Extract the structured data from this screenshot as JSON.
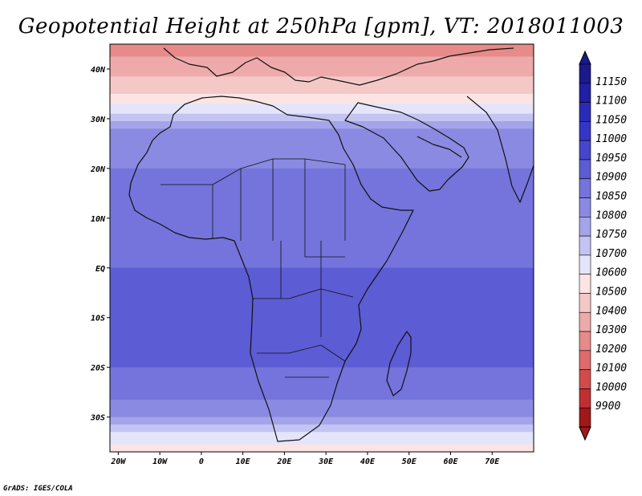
{
  "chart_data": {
    "type": "heatmap",
    "title": "Geopotential Height at 250hPa [gpm], VT: 2018011003",
    "variable": "Geopotential Height",
    "level": "250hPa",
    "units": "gpm",
    "valid_time": "2018011003",
    "x_axis": {
      "range": [
        -22,
        80
      ],
      "ticks": [
        -20,
        -10,
        0,
        10,
        20,
        30,
        40,
        50,
        60,
        70
      ],
      "tick_labels": [
        "20W",
        "10W",
        "0",
        "10E",
        "20E",
        "30E",
        "40E",
        "50E",
        "60E",
        "70E"
      ]
    },
    "y_axis": {
      "range": [
        -37,
        45
      ],
      "ticks": [
        40,
        30,
        20,
        10,
        0,
        -10,
        -20,
        -30
      ],
      "tick_labels": [
        "40N",
        "30N",
        "20N",
        "10N",
        "EQ",
        "10S",
        "20S",
        "30S"
      ]
    },
    "colorbar": {
      "levels": [
        "11150",
        "11100",
        "11050",
        "11000",
        "10950",
        "10900",
        "10850",
        "10800",
        "10750",
        "10700",
        "10600",
        "10500",
        "10400",
        "10300",
        "10200",
        "10100",
        "10000",
        "9900"
      ],
      "colors": [
        "#1a1a8c",
        "#2020a0",
        "#2b2bb8",
        "#3535c8",
        "#4646cc",
        "#5c5cd4",
        "#7474dc",
        "#8a8ae2",
        "#a4a4ea",
        "#c4c4f2",
        "#e4e4fa",
        "#fbe4e4",
        "#f5c8c8",
        "#eeaaaa",
        "#e68a8a",
        "#de6a6a",
        "#d24b4b",
        "#c03030",
        "#a01818"
      ],
      "extend_top_color": "#1a1a8c",
      "extend_bottom_color": "#a01818"
    },
    "field_zones": [
      {
        "lat": 45,
        "value": 10250
      },
      {
        "lat": 40,
        "value": 10350
      },
      {
        "lat": 35,
        "value": 10500
      },
      {
        "lat": 31,
        "value": 10700
      },
      {
        "lat": 28,
        "value": 10800
      },
      {
        "lat": 20,
        "value": 10850
      },
      {
        "lat": 10,
        "value": 10880
      },
      {
        "lat": 0,
        "value": 10900
      },
      {
        "lat": -10,
        "value": 10910
      },
      {
        "lat": -20,
        "value": 10900
      },
      {
        "lat": -26,
        "value": 10860
      },
      {
        "lat": -30,
        "value": 10800
      },
      {
        "lat": -33,
        "value": 10700
      },
      {
        "lat": -37,
        "value": 10550
      }
    ]
  },
  "footer": {
    "credit": "GrADS: IGES/COLA"
  }
}
